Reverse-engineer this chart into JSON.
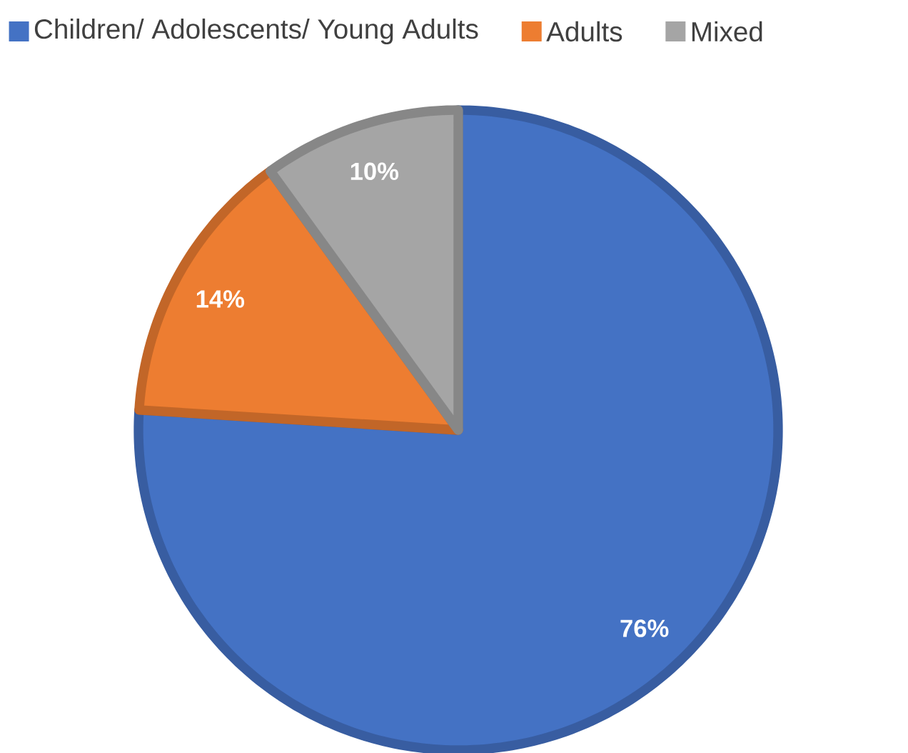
{
  "chart_data": {
    "type": "pie",
    "categories": [
      "Children/ Adolescents/ Young Adults",
      "Adults",
      "Mixed"
    ],
    "values": [
      76,
      14,
      10
    ],
    "colors": [
      "#4472c4",
      "#ed7d31",
      "#a5a5a5"
    ],
    "value_labels": [
      "76%",
      "14%",
      "10%"
    ],
    "legend": "top"
  }
}
